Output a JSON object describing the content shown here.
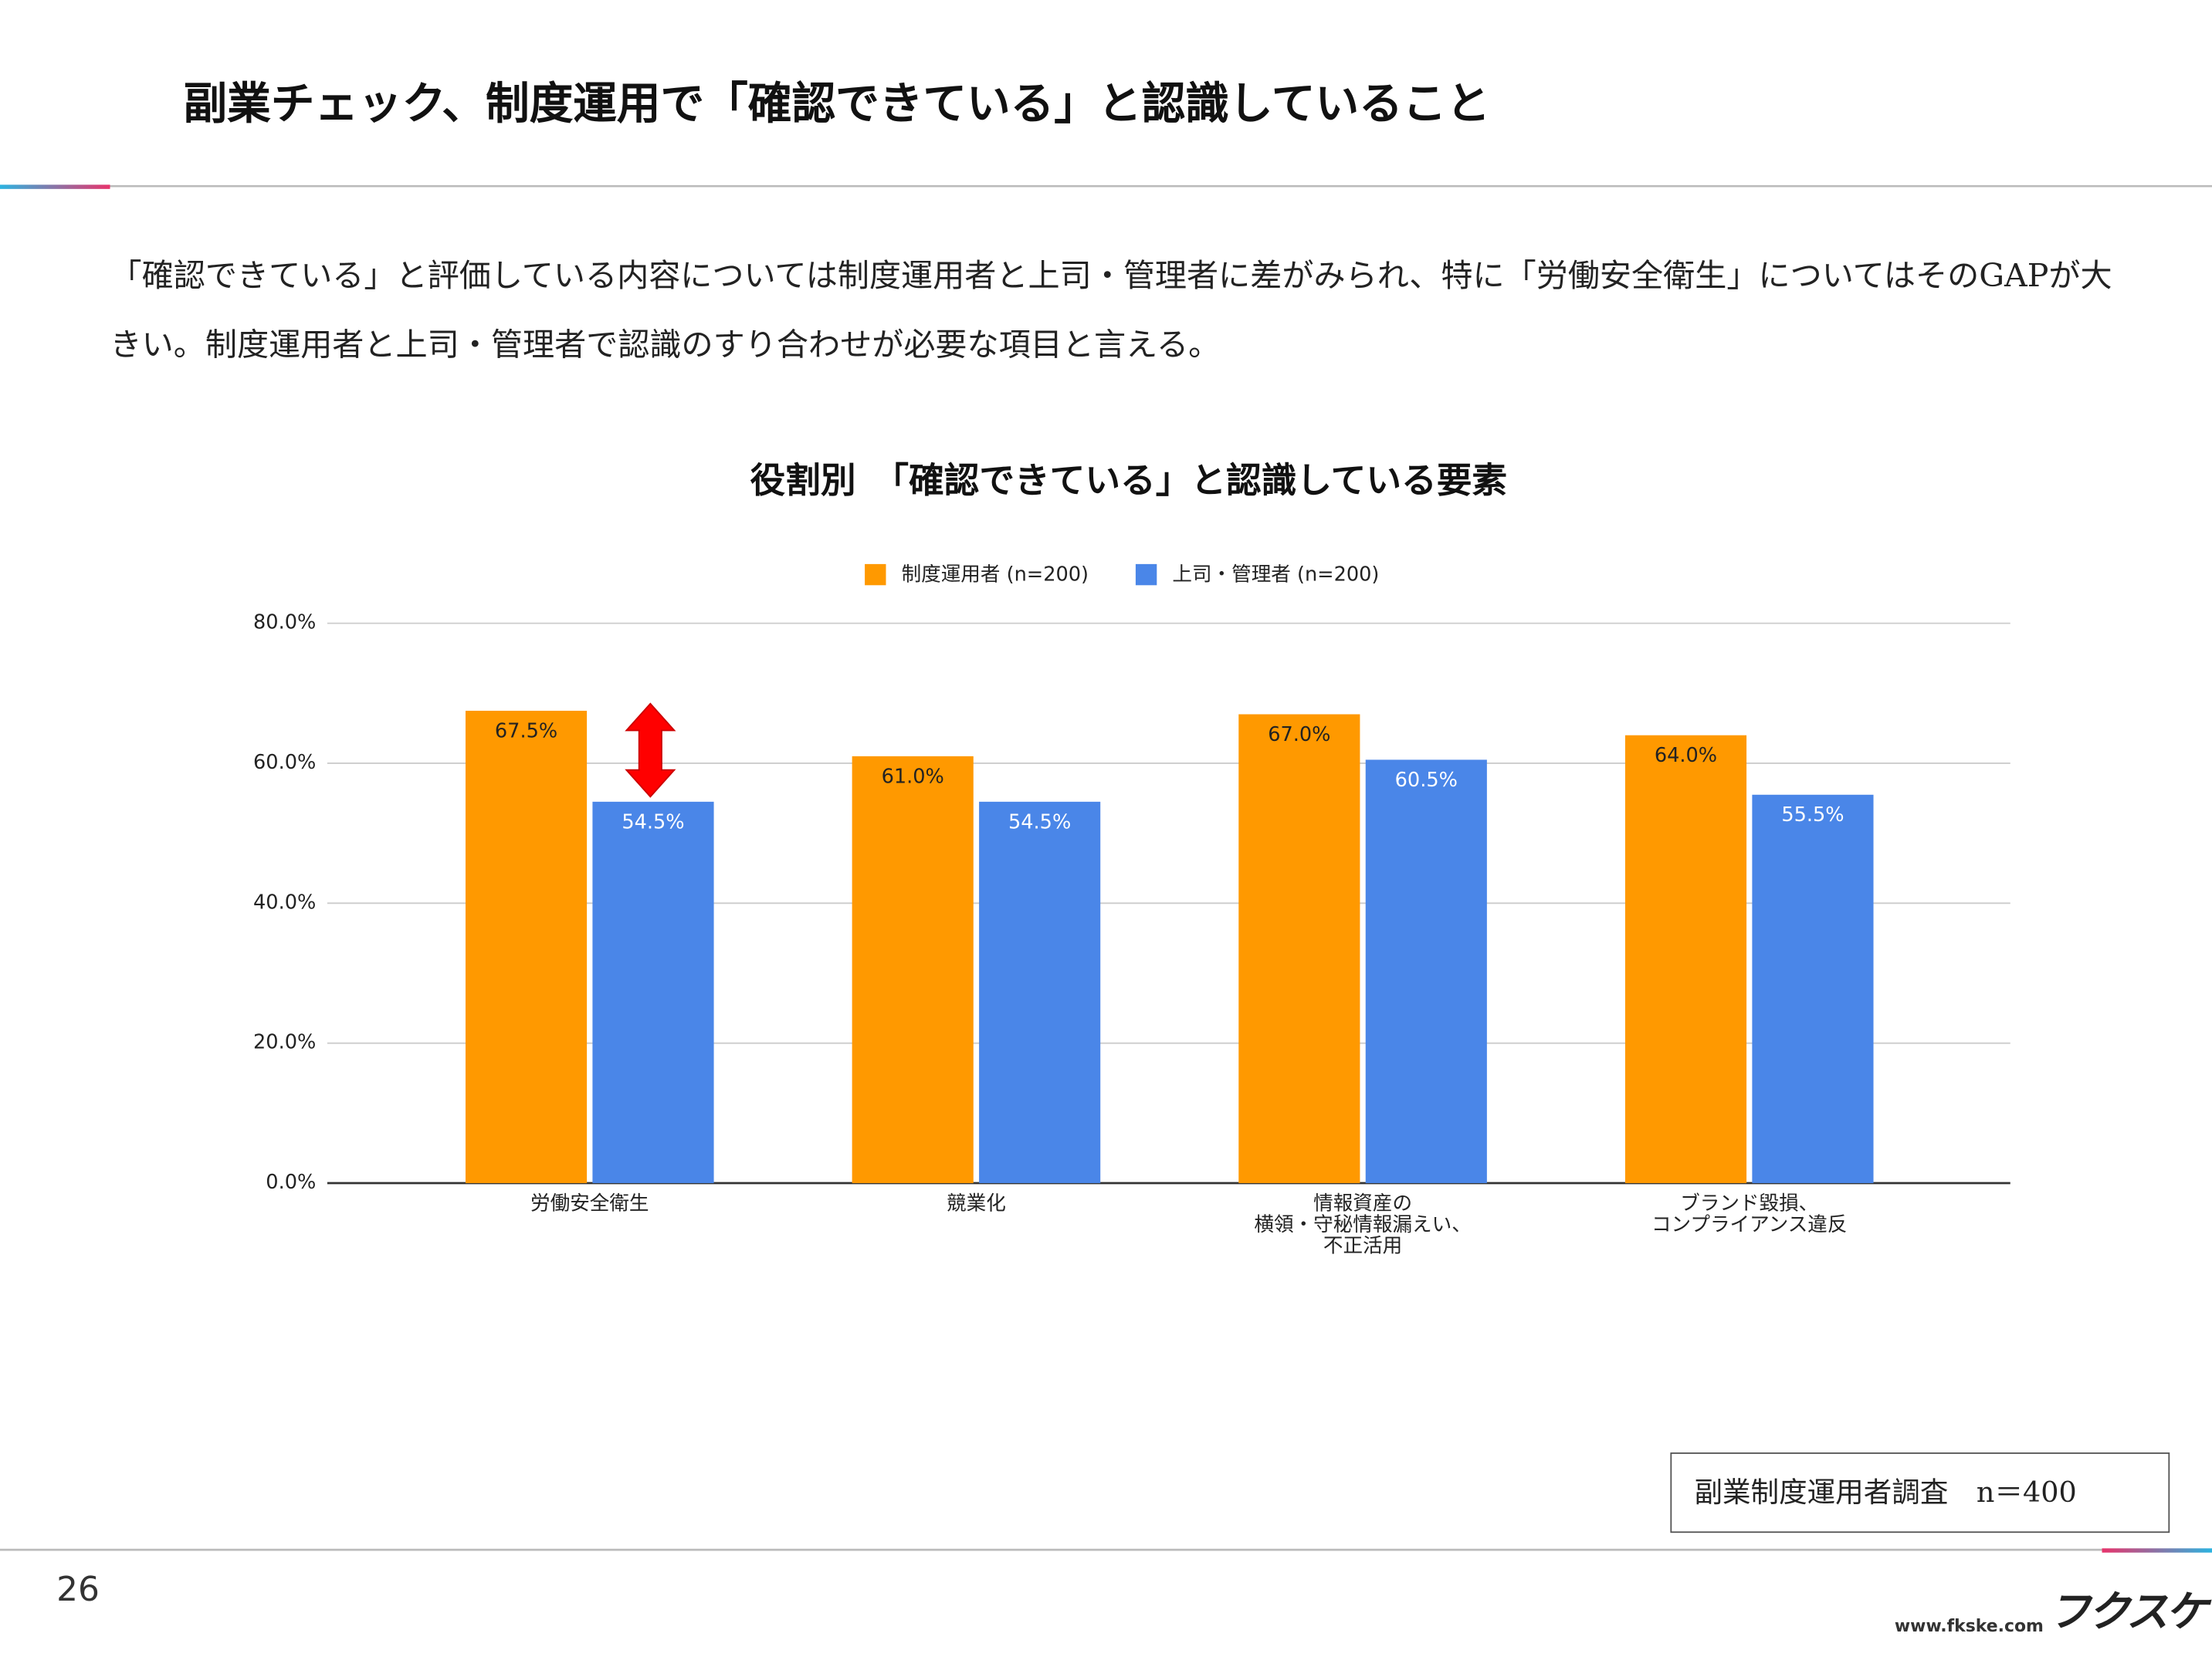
{
  "slide": {
    "title": "副業チェック、制度運用で「確認できている」と認識していること",
    "lead": "「確認できている」と評価している内容については制度運用者と上司・管理者に差がみられ、特に「労働安全衛生」についてはそのGAPが大きい。制度運用者と上司・管理者で認識のすり合わせが必要な項目と言える。",
    "note": "副業制度運用者調査　n＝400",
    "page_number": "26",
    "url": "www.fkske.com",
    "logo": "フクスケ"
  },
  "chart_data": {
    "type": "bar",
    "title": "役割別　「確認できている」と認識している要素",
    "categories": [
      "労働安全衛生",
      "競業化",
      "情報資産の\n横領・守秘情報漏えい、\n不正活用",
      "ブランド毀損、\nコンプライアンス違反"
    ],
    "series": [
      {
        "name": "制度運用者 (n=200)",
        "color": "#ff9900",
        "values": [
          67.5,
          61.0,
          67.0,
          64.0
        ],
        "value_labels": [
          "67.5%",
          "61.0%",
          "67.0%",
          "64.0%"
        ],
        "label_color": "#222222"
      },
      {
        "name": "上司・管理者 (n=200)",
        "color": "#4a86e8",
        "values": [
          54.5,
          54.5,
          60.5,
          55.5
        ],
        "value_labels": [
          "54.5%",
          "54.5%",
          "60.5%",
          "55.5%"
        ],
        "label_color": "#ffffff"
      }
    ],
    "ylim": [
      0,
      80
    ],
    "yticks": [
      {
        "value": 0,
        "label": "0.0%"
      },
      {
        "value": 20,
        "label": "20.0%"
      },
      {
        "value": 40,
        "label": "40.0%"
      },
      {
        "value": 60,
        "label": "60.0%"
      },
      {
        "value": 80,
        "label": "80.0%"
      }
    ],
    "grid": true,
    "legend": "top"
  }
}
